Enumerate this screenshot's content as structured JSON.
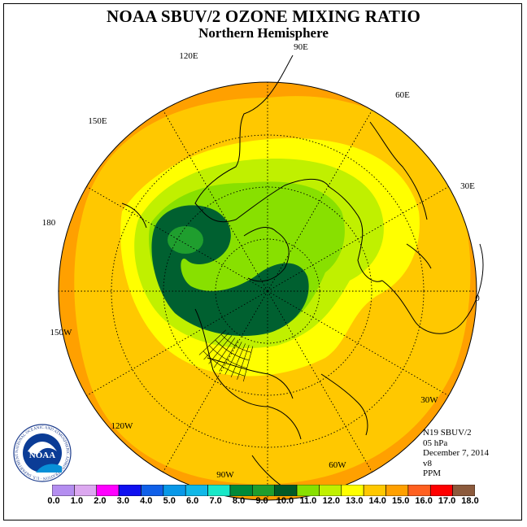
{
  "title": "NOAA SBUV/2 OZONE MIXING RATIO",
  "subtitle": "Northern Hemisphere",
  "longitude_labels": [
    "90E",
    "60E",
    "30E",
    "0",
    "30W",
    "60W",
    "90W",
    "120W",
    "150W",
    "180",
    "150E",
    "120E"
  ],
  "info": {
    "instrument": "N19 SBUV/2",
    "level": "05 hPa",
    "date": "December 7, 2014",
    "version": "v8",
    "units": "PPM"
  },
  "logo": {
    "text": "NOAA",
    "ring_text": "NATIONAL OCEANIC AND ATMOSPHERIC ADMINISTRATION · U.S. DEPARTMENT OF COMMERCE"
  },
  "legend": {
    "tick_labels": [
      "0.0",
      "1.0",
      "2.0",
      "3.0",
      "4.0",
      "5.0",
      "6.0",
      "7.0",
      "8.0",
      "9.0",
      "10.0",
      "11.0",
      "12.0",
      "13.0",
      "14.0",
      "15.0",
      "16.0",
      "17.0",
      "18.0"
    ],
    "colors": [
      "#b48ef0",
      "#dca8f0",
      "#ff00ff",
      "#1010f0",
      "#1060e8",
      "#0898e8",
      "#10b8e8",
      "#18e8c8",
      "#008a3a",
      "#1f9e2e",
      "#005a28",
      "#88e000",
      "#c0f000",
      "#ffff00",
      "#ffc800",
      "#ffa000",
      "#ff6020",
      "#ff0000",
      "#8c5a3c"
    ]
  },
  "map_colors": {
    "outer": "#ffa000",
    "ring": "#ffc800",
    "yellow": "#ffff00",
    "light_green": "#c0f000",
    "green": "#88e000",
    "dark_green": "#006030",
    "mid_green": "#1f9e2e"
  }
}
